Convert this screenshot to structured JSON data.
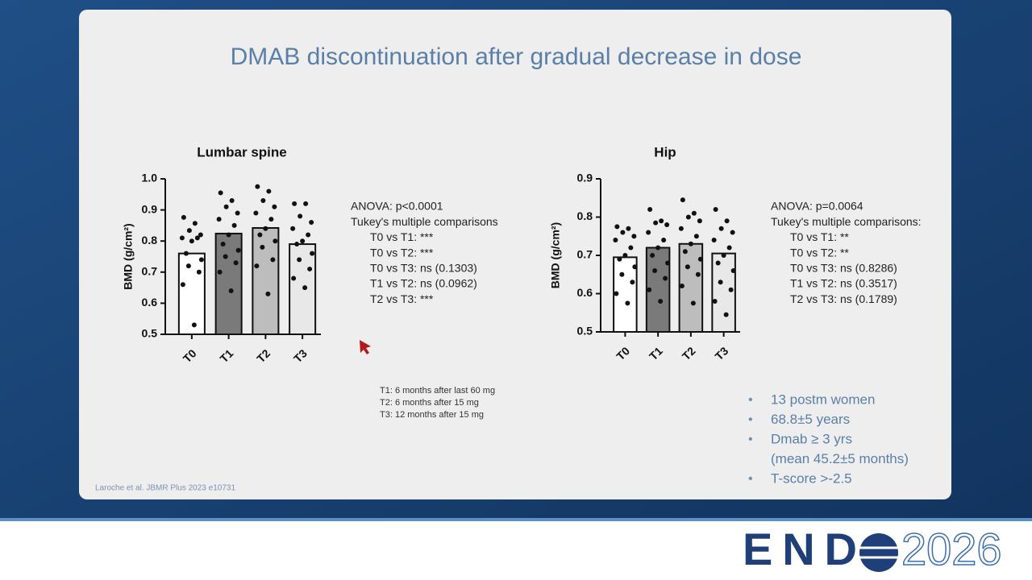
{
  "slide": {
    "title": "DMAB discontinuation after gradual decrease in dose",
    "footnotes": [
      "T1: 6 months after last 60 mg",
      "T2: 6 months after 15 mg",
      "T3: 12 months after 15 mg"
    ],
    "bullets": [
      [
        "13 postm women"
      ],
      [
        "68.8±5 years"
      ],
      [
        "Dmab ≥ 3 yrs",
        "(mean 45.2±5 months)"
      ],
      [
        "T-score >-2.5"
      ]
    ],
    "citation": "Laroche et al. JBMR Plus 2023 e10731",
    "logo": {
      "left": "END",
      "right": "2026"
    }
  },
  "chart_data": [
    {
      "type": "bar",
      "title": "Lumbar spine",
      "y_label": "BMD (g/cm²)",
      "categories": [
        "T0",
        "T1",
        "T2",
        "T3"
      ],
      "values": [
        0.76,
        0.824,
        0.842,
        0.79
      ],
      "colors": [
        "#ffffff",
        "#7a7a7a",
        "#bdbdbd",
        "#e8e8e8"
      ],
      "points": [
        [
          0.876,
          0.857,
          0.834,
          0.82,
          0.81,
          0.81,
          0.8,
          0.76,
          0.74,
          0.72,
          0.7,
          0.66,
          0.53
        ],
        [
          0.955,
          0.93,
          0.91,
          0.89,
          0.87,
          0.85,
          0.82,
          0.79,
          0.77,
          0.75,
          0.73,
          0.7,
          0.64
        ],
        [
          0.975,
          0.96,
          0.93,
          0.91,
          0.89,
          0.87,
          0.84,
          0.82,
          0.8,
          0.78,
          0.74,
          0.72,
          0.63
        ],
        [
          0.92,
          0.92,
          0.88,
          0.86,
          0.84,
          0.82,
          0.8,
          0.79,
          0.76,
          0.74,
          0.71,
          0.68,
          0.65
        ]
      ],
      "ylim": [
        0.5,
        1.0
      ],
      "yticks": [
        0.5,
        0.6,
        0.7,
        0.8,
        0.9,
        {
          "value": 1.0,
          "label": "1.0"
        }
      ],
      "annotations": [
        "ANOVA: p<0.0001",
        "Tukey's multiple comparisons",
        "T0 vs T1: ***",
        "T0 vs T2: ***",
        "T0 vs T3: ns (0.1303)",
        "T1 vs T2: ns (0.0962)",
        "T2 vs T3: ***"
      ]
    },
    {
      "type": "bar",
      "title": "Hip",
      "y_label": "BMD (g/cm²)",
      "categories": [
        "T0",
        "T1",
        "T2",
        "T3"
      ],
      "values": [
        0.695,
        0.72,
        0.73,
        0.705
      ],
      "colors": [
        "#ffffff",
        "#7a7a7a",
        "#bdbdbd",
        "#e8e8e8"
      ],
      "points": [
        [
          0.775,
          0.77,
          0.76,
          0.75,
          0.74,
          0.72,
          0.7,
          0.69,
          0.67,
          0.65,
          0.63,
          0.6,
          0.575
        ],
        [
          0.82,
          0.79,
          0.785,
          0.78,
          0.76,
          0.74,
          0.72,
          0.7,
          0.68,
          0.66,
          0.64,
          0.61,
          0.58
        ],
        [
          0.845,
          0.81,
          0.8,
          0.79,
          0.77,
          0.75,
          0.73,
          0.71,
          0.69,
          0.67,
          0.65,
          0.62,
          0.575
        ],
        [
          0.82,
          0.79,
          0.77,
          0.76,
          0.74,
          0.72,
          0.7,
          0.68,
          0.66,
          0.63,
          0.61,
          0.58,
          0.545
        ]
      ],
      "ylim": [
        0.5,
        0.9
      ],
      "yticks": [
        0.5,
        0.6,
        0.7,
        0.8,
        0.9
      ],
      "annotations": [
        "ANOVA: p=0.0064",
        "Tukey's multiple comparisons:",
        "T0 vs T1: **",
        "T0 vs T2: **",
        "T0 vs T3: ns (0.8286)",
        "T1 vs T2: ns (0.3517)",
        "T2 vs T3: ns (0.1789)"
      ]
    }
  ]
}
